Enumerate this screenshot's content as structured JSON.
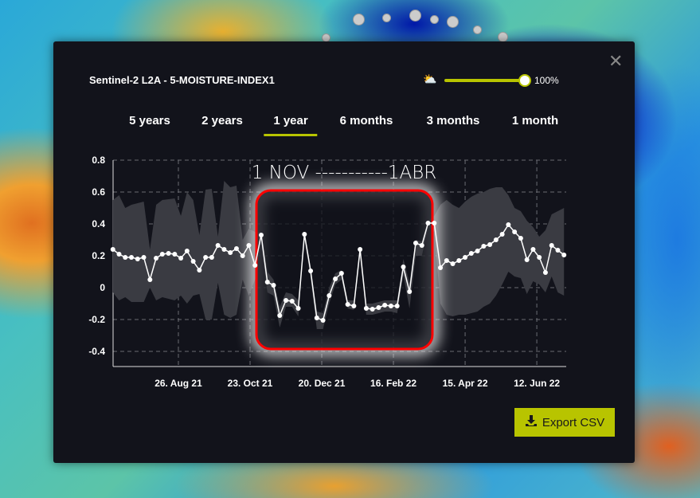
{
  "header": {
    "title": "Sentinel-2 L2A - 5-MOISTURE-INDEX1",
    "cloud_icon": "cloud-sun-icon",
    "cloud_coverage_percent": 100,
    "cloud_coverage_label": "100%",
    "close_icon": "close-icon"
  },
  "tabs": [
    {
      "label": "5 years"
    },
    {
      "label": "2 years"
    },
    {
      "label": "1 year",
      "active": true
    },
    {
      "label": "6 months"
    },
    {
      "label": "3 months"
    },
    {
      "label": "1 month"
    }
  ],
  "export": {
    "label": "Export CSV",
    "icon": "download-icon"
  },
  "colors": {
    "accent": "#b8c400",
    "highlight_box": "#ff0000",
    "line": "#ffffff",
    "band": "#3a3b42",
    "panel": "#12131b"
  },
  "annotation": {
    "text": "1 NOV -----------1ABR"
  },
  "chart_data": {
    "type": "line",
    "title": "",
    "xlabel": "",
    "ylabel": "",
    "ylim": [
      -0.5,
      0.8
    ],
    "yticks": [
      "0.8",
      "0.6",
      "0.4",
      "0.2",
      "0",
      "-0.2",
      "-0.4"
    ],
    "xticks": [
      {
        "label": "26. Aug 21",
        "date": "2021-08-26"
      },
      {
        "label": "23. Oct 21",
        "date": "2021-10-23"
      },
      {
        "label": "20. Dec 21",
        "date": "2021-12-20"
      },
      {
        "label": "16. Feb 22",
        "date": "2022-02-16"
      },
      {
        "label": "15. Apr 22",
        "date": "2022-04-15"
      },
      {
        "label": "12. Jun 22",
        "date": "2022-06-12"
      }
    ],
    "grid": true,
    "highlight_range": [
      "2021-11-01",
      "2022-04-01"
    ],
    "x": [
      "2021-07-04",
      "2021-07-09",
      "2021-07-14",
      "2021-07-19",
      "2021-07-24",
      "2021-07-29",
      "2021-08-03",
      "2021-08-08",
      "2021-08-13",
      "2021-08-18",
      "2021-08-23",
      "2021-08-28",
      "2021-09-02",
      "2021-09-07",
      "2021-09-12",
      "2021-09-17",
      "2021-09-22",
      "2021-09-27",
      "2021-10-02",
      "2021-10-07",
      "2021-10-12",
      "2021-10-17",
      "2021-10-22",
      "2021-10-27",
      "2021-11-01",
      "2021-11-06",
      "2021-11-11",
      "2021-11-16",
      "2021-11-21",
      "2021-11-26",
      "2021-12-01",
      "2021-12-06",
      "2021-12-11",
      "2021-12-16",
      "2021-12-21",
      "2021-12-26",
      "2021-12-31",
      "2022-01-05",
      "2022-01-10",
      "2022-01-15",
      "2022-01-20",
      "2022-01-25",
      "2022-01-30",
      "2022-02-04",
      "2022-02-09",
      "2022-02-14",
      "2022-02-19",
      "2022-02-24",
      "2022-03-01",
      "2022-03-06",
      "2022-03-11",
      "2022-03-16",
      "2022-03-21",
      "2022-03-26",
      "2022-03-31",
      "2022-04-05",
      "2022-04-10",
      "2022-04-15",
      "2022-04-20",
      "2022-04-25",
      "2022-04-30",
      "2022-05-05",
      "2022-05-10",
      "2022-05-15",
      "2022-05-20",
      "2022-05-25",
      "2022-05-30",
      "2022-06-04",
      "2022-06-09",
      "2022-06-14",
      "2022-06-19",
      "2022-06-24",
      "2022-06-29",
      "2022-07-04"
    ],
    "series": [
      {
        "kind": "mean",
        "values": [
          0.24,
          0.21,
          0.19,
          0.19,
          0.18,
          0.19,
          0.05,
          0.185,
          0.21,
          0.215,
          0.21,
          0.185,
          0.23,
          0.165,
          0.11,
          0.19,
          0.19,
          0.265,
          0.24,
          0.22,
          0.245,
          0.2,
          0.265,
          0.14,
          0.33,
          0.035,
          0.015,
          -0.175,
          -0.08,
          -0.085,
          -0.13,
          0.335,
          0.105,
          -0.19,
          -0.205,
          -0.05,
          0.055,
          0.09,
          -0.105,
          -0.115,
          0.24,
          -0.13,
          -0.135,
          -0.125,
          -0.11,
          -0.115,
          -0.115,
          0.13,
          -0.025,
          0.28,
          0.265,
          0.405,
          0.405,
          0.125,
          0.17,
          0.15,
          0.17,
          0.19,
          0.215,
          0.23,
          0.26,
          0.27,
          0.3,
          0.335,
          0.395,
          0.35,
          0.31,
          0.175,
          0.24,
          0.19,
          0.095,
          0.265,
          0.235,
          0.205
        ]
      },
      {
        "kind": "band_upper",
        "values": [
          0.55,
          0.58,
          0.5,
          0.52,
          0.53,
          0.54,
          0.24,
          0.52,
          0.55,
          0.555,
          0.56,
          0.45,
          0.6,
          0.55,
          0.33,
          0.615,
          0.62,
          0.32,
          0.67,
          0.63,
          0.64,
          0.3,
          0.37,
          0.35,
          0.35,
          0.1,
          0.05,
          -0.12,
          -0.03,
          -0.04,
          -0.08,
          0.35,
          0.13,
          -0.15,
          -0.16,
          0,
          0.09,
          0.11,
          -0.08,
          -0.08,
          0.26,
          -0.1,
          -0.1,
          -0.09,
          -0.08,
          -0.08,
          -0.08,
          0.18,
          0.03,
          0.3,
          0.29,
          0.42,
          0.45,
          0.52,
          0.55,
          0.52,
          0.5,
          0.54,
          0.57,
          0.59,
          0.6,
          0.62,
          0.63,
          0.63,
          0.58,
          0.5,
          0.48,
          0.42,
          0.38,
          0.32,
          0.36,
          0.46,
          0.48,
          0.5
        ]
      },
      {
        "kind": "band_lower",
        "values": [
          -0.03,
          -0.08,
          -0.06,
          -0.09,
          -0.09,
          -0.09,
          0,
          -0.08,
          -0.06,
          -0.07,
          -0.08,
          -0.05,
          -0.1,
          -0.05,
          -0.04,
          -0.2,
          -0.2,
          0.03,
          -0.17,
          -0.19,
          -0.17,
          0.05,
          -0.05,
          0.05,
          0.28,
          -0.03,
          -0.05,
          -0.25,
          -0.12,
          -0.12,
          -0.18,
          0.3,
          0.06,
          -0.26,
          -0.26,
          -0.1,
          0.02,
          0.05,
          -0.13,
          -0.14,
          0.2,
          -0.17,
          -0.17,
          -0.16,
          -0.15,
          -0.15,
          -0.16,
          0.08,
          -0.13,
          0.2,
          0.2,
          0.38,
          0.35,
          -0.1,
          -0.17,
          -0.18,
          -0.17,
          -0.17,
          -0.16,
          -0.15,
          -0.12,
          -0.1,
          -0.05,
          0.02,
          0.1,
          0.07,
          0.06,
          -0.04,
          0.04,
          0.02,
          -0.03,
          0.07,
          -0.03,
          -0.05
        ]
      }
    ]
  }
}
